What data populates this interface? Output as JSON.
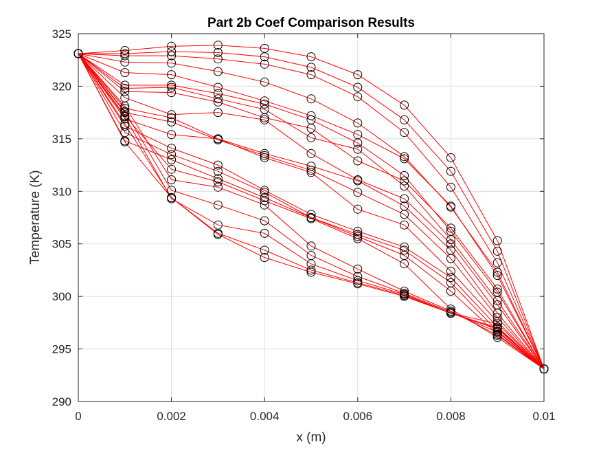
{
  "chart_data": {
    "type": "line",
    "title": "Part 2b Coef Comparison Results",
    "xlabel": "x (m)",
    "ylabel": "Temperature (K)",
    "xlim": [
      0,
      0.01
    ],
    "ylim": [
      290,
      325
    ],
    "xticks": [
      "0",
      "0.002",
      "0.004",
      "0.006",
      "0.008",
      "0.01"
    ],
    "yticks": [
      "290",
      "295",
      "300",
      "305",
      "310",
      "315",
      "320",
      "325"
    ],
    "grid": true,
    "line_color": "#ff0000",
    "marker": "open-circle",
    "marker_color": "#000000",
    "x": [
      0,
      0.001,
      0.002,
      0.003,
      0.004,
      0.005,
      0.006,
      0.007,
      0.008,
      0.009,
      0.01
    ],
    "series": [
      {
        "values": [
          323.1,
          323.4,
          323.8,
          323.9,
          323.6,
          322.8,
          321.1,
          318.2,
          313.2,
          305.3,
          293.1
        ]
      },
      {
        "values": [
          323.1,
          323.1,
          323.3,
          323.2,
          322.8,
          321.8,
          319.9,
          316.8,
          311.9,
          304.3,
          293.1
        ]
      },
      {
        "values": [
          323.1,
          322.9,
          322.9,
          322.6,
          322.1,
          321.1,
          319.0,
          315.6,
          310.4,
          303.2,
          293.1
        ]
      },
      {
        "values": [
          323.1,
          322.3,
          322.2,
          321.4,
          320.4,
          318.8,
          316.5,
          313.3,
          308.5,
          302.3,
          293.1
        ]
      },
      {
        "values": [
          323.1,
          321.3,
          321.1,
          319.9,
          318.6,
          317.2,
          315.4,
          313.1,
          308.6,
          302.0,
          293.1
        ]
      },
      {
        "values": [
          323.1,
          320.1,
          320.1,
          319.3,
          318.3,
          316.8,
          314.6,
          311.5,
          306.2,
          300.4,
          293.1
        ]
      },
      {
        "values": [
          323.1,
          319.8,
          319.9,
          318.8,
          317.8,
          315.1,
          314.0,
          310.5,
          305.4,
          299.6,
          293.1
        ]
      },
      {
        "values": [
          323.1,
          319.5,
          319.4,
          318.5,
          317.0,
          316.0,
          312.9,
          311.0,
          306.5,
          300.7,
          293.1
        ]
      },
      {
        "values": [
          323.1,
          318.9,
          317.3,
          317.5,
          316.8,
          313.6,
          311.1,
          309.3,
          305.0,
          299.2,
          293.1
        ]
      },
      {
        "values": [
          323.1,
          317.9,
          317.0,
          315.0,
          313.6,
          312.4,
          311.0,
          308.6,
          304.4,
          298.4,
          293.1
        ]
      },
      {
        "values": [
          323.1,
          317.5,
          316.6,
          314.9,
          313.4,
          312.0,
          309.9,
          307.8,
          303.6,
          298.0,
          293.1
        ]
      },
      {
        "values": [
          323.1,
          316.9,
          315.4,
          315.0,
          313.2,
          311.8,
          308.3,
          306.8,
          302.4,
          297.6,
          293.1
        ]
      },
      {
        "values": [
          323.1,
          316.2,
          314.1,
          312.5,
          310.1,
          307.8,
          306.2,
          304.7,
          301.8,
          297.1,
          293.1
        ]
      },
      {
        "values": [
          323.1,
          315.6,
          313.5,
          311.9,
          309.9,
          307.5,
          305.9,
          304.4,
          301.3,
          296.7,
          293.1
        ]
      },
      {
        "values": [
          323.1,
          314.8,
          313.0,
          311.2,
          309.4,
          307.5,
          305.7,
          303.9,
          300.5,
          296.4,
          293.1
        ]
      },
      {
        "values": [
          323.1,
          317.2,
          312.1,
          310.9,
          309.1,
          307.4,
          305.5,
          303.1,
          298.8,
          296.1,
          293.1
        ]
      },
      {
        "values": [
          323.1,
          318.1,
          311.1,
          310.4,
          308.7,
          304.8,
          302.6,
          300.5,
          298.6,
          296.3,
          293.1
        ]
      },
      {
        "values": [
          323.1,
          317.6,
          310.1,
          308.7,
          307.2,
          303.9,
          301.9,
          300.3,
          298.5,
          296.6,
          293.1
        ]
      },
      {
        "values": [
          323.1,
          317.1,
          309.3,
          306.8,
          306.0,
          303.1,
          301.5,
          300.2,
          298.4,
          296.9,
          293.1
        ]
      },
      {
        "values": [
          323.1,
          316.4,
          309.4,
          306.0,
          304.4,
          302.5,
          301.3,
          300.1,
          298.4,
          297.4,
          293.1
        ]
      },
      {
        "values": [
          323.1,
          314.7,
          309.4,
          305.9,
          303.7,
          302.3,
          301.2,
          300.0,
          298.4,
          297.0,
          293.1
        ]
      }
    ]
  }
}
